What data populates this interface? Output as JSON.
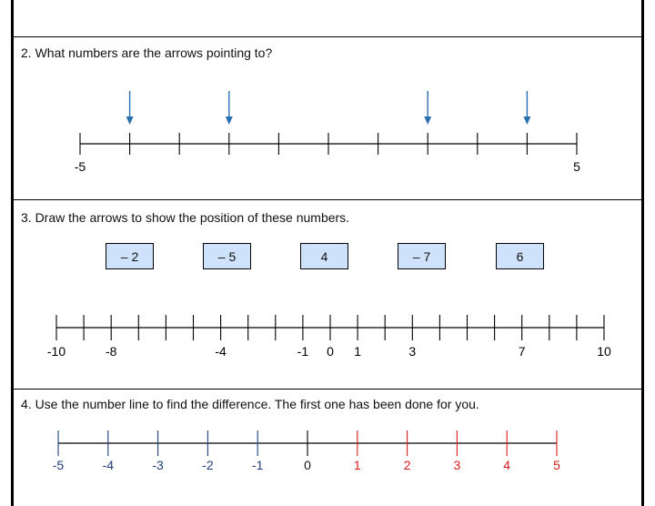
{
  "q2": {
    "text": "2. What numbers are the arrows pointing to?",
    "start_label": "-5",
    "end_label": "5",
    "start_value": -5,
    "end_value": 5,
    "arrow_values": [
      -4,
      -2,
      2,
      4
    ],
    "arrow_color": "#2a6fb0"
  },
  "q3": {
    "text": "3. Draw the arrows to show the position of these numbers.",
    "boxes": [
      "– 2",
      "– 5",
      "4",
      "– 7",
      "6"
    ],
    "box_color": "#cfe2fb",
    "start_value": -10,
    "end_value": 10,
    "tick_labels": [
      {
        "value": -10,
        "label": "-10"
      },
      {
        "value": -8,
        "label": "-8"
      },
      {
        "value": -4,
        "label": "-4"
      },
      {
        "value": -1,
        "label": "-1"
      },
      {
        "value": 0,
        "label": "0"
      },
      {
        "value": 1,
        "label": "1"
      },
      {
        "value": 3,
        "label": "3"
      },
      {
        "value": 7,
        "label": "7"
      },
      {
        "value": 10,
        "label": "10"
      }
    ]
  },
  "q4": {
    "text": "4. Use the number line to find the difference. The first one has been done for you.",
    "labels": [
      {
        "value": -5,
        "label": "-5",
        "color": "#1f3f7a"
      },
      {
        "value": -4,
        "label": "-4",
        "color": "#1f3f7a"
      },
      {
        "value": -3,
        "label": "-3",
        "color": "#1f3f7a"
      },
      {
        "value": -2,
        "label": "-2",
        "color": "#1f3f7a"
      },
      {
        "value": -1,
        "label": "-1",
        "color": "#1f3f7a"
      },
      {
        "value": 0,
        "label": "0",
        "color": "#111111"
      },
      {
        "value": 1,
        "label": "1",
        "color": "#d81b1b"
      },
      {
        "value": 2,
        "label": "2",
        "color": "#d81b1b"
      },
      {
        "value": 3,
        "label": "3",
        "color": "#d81b1b"
      },
      {
        "value": 4,
        "label": "4",
        "color": "#d81b1b"
      },
      {
        "value": 5,
        "label": "5",
        "color": "#d81b1b"
      }
    ]
  }
}
